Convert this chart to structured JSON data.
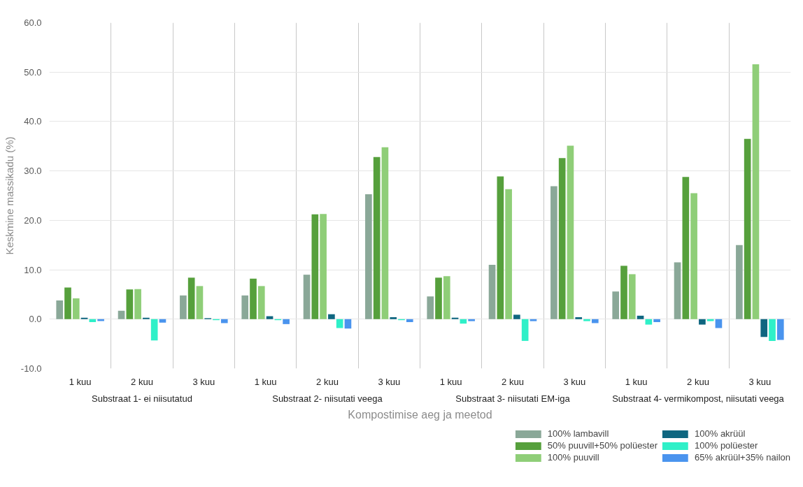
{
  "chart_data": {
    "type": "bar",
    "xlabel": "Kompostimise aeg ja meetod",
    "ylabel": "Keskmine massikadu (%)",
    "categories": [
      "1 kuu",
      "2 kuu",
      "3 kuu",
      "1 kuu",
      "2 kuu",
      "3 kuu",
      "1 kuu",
      "2 kuu",
      "3 kuu",
      "1 kuu",
      "2 kuu",
      "3 kuu"
    ],
    "annotations": [
      "Substraat 1- ei niisutatud",
      "Substraat 2- niisutati veega",
      "Substraat 3- niisutati EM-iga",
      "Substraat 4- vermikompost, niisutati veega"
    ],
    "series": [
      {
        "name": "100% lambavill",
        "color": "#8aa898",
        "values": [
          3.8,
          1.7,
          4.8,
          4.8,
          9.0,
          25.3,
          4.6,
          11.0,
          26.9,
          5.6,
          11.5,
          15.0
        ]
      },
      {
        "name": "50% puuvill+50% polüester",
        "color": "#56a03c",
        "values": [
          6.4,
          6.0,
          8.4,
          8.2,
          21.2,
          32.8,
          8.4,
          28.9,
          32.6,
          10.8,
          28.8,
          36.5
        ]
      },
      {
        "name": "100% puuvill",
        "color": "#8fce78",
        "values": [
          4.2,
          6.1,
          6.7,
          6.7,
          21.3,
          34.8,
          8.7,
          26.3,
          35.1,
          9.1,
          25.5,
          51.6
        ]
      },
      {
        "name": "100% akrüül",
        "color": "#0f6680",
        "values": [
          0.3,
          0.3,
          0.2,
          0.6,
          1.0,
          0.4,
          0.3,
          0.9,
          0.4,
          0.7,
          -1.1,
          -3.6
        ]
      },
      {
        "name": "100% polüester",
        "color": "#2ff0c8",
        "values": [
          -0.6,
          -4.3,
          -0.2,
          -0.2,
          -1.8,
          -0.2,
          -0.9,
          -4.4,
          -0.4,
          -1.1,
          -0.4,
          -4.4
        ]
      },
      {
        "name": "65% akrüül+35% nailon",
        "color": "#4a94ee",
        "values": [
          -0.4,
          -0.7,
          -0.8,
          -1.0,
          -1.9,
          -0.6,
          -0.4,
          -0.4,
          -0.8,
          -0.6,
          -1.8,
          -4.2
        ]
      }
    ],
    "ylim": [
      -10,
      60
    ],
    "yticks": [
      {
        "value": -10,
        "label": "-10.0"
      },
      {
        "value": 0,
        "label": "0.0"
      },
      {
        "value": 10,
        "label": "10.0"
      },
      {
        "value": 20,
        "label": "20.0"
      },
      {
        "value": 30,
        "label": "30.0"
      },
      {
        "value": 40,
        "label": "40.0"
      },
      {
        "value": 50,
        "label": "50.0"
      },
      {
        "value": 60,
        "label": "60.0"
      }
    ],
    "grid": true,
    "legend": "bottom right"
  }
}
